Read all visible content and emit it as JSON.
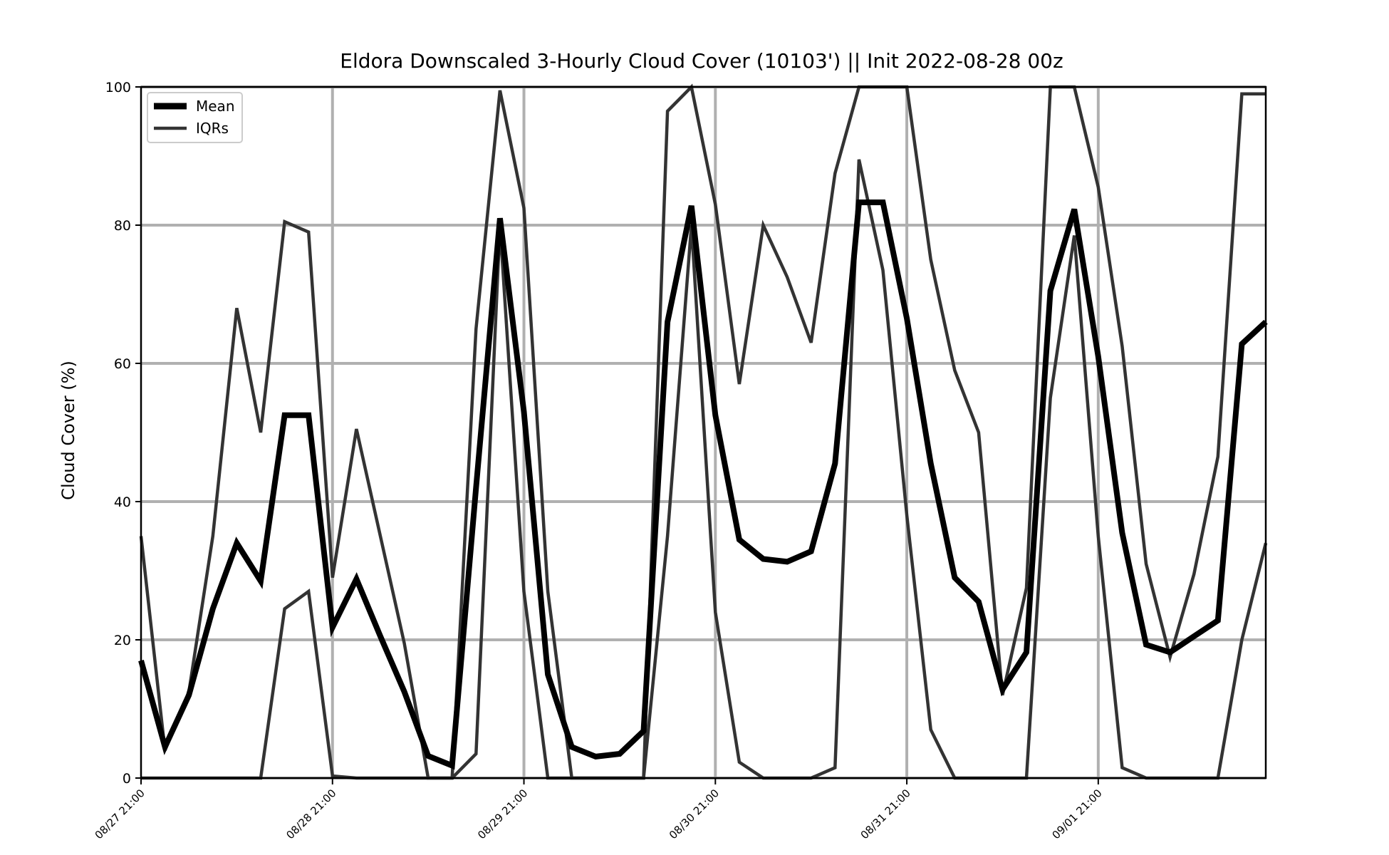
{
  "chart_data": {
    "type": "line",
    "title": "Eldora Downscaled 3-Hourly Cloud Cover (10103') || Init 2022-08-28 00z",
    "xlabel": "",
    "ylabel": "Cloud Cover (%)",
    "ylim": [
      0,
      100
    ],
    "yticks": [
      "0",
      "20",
      "40",
      "60",
      "80",
      "100"
    ],
    "xtick_labels": [
      "08/27 21:00",
      "08/28 21:00",
      "08/29 21:00",
      "08/30 21:00",
      "08/31 21:00",
      "09/01 21:00"
    ],
    "x": [
      "08/27 21:00",
      "08/28 00:00",
      "08/28 03:00",
      "08/28 06:00",
      "08/28 09:00",
      "08/28 12:00",
      "08/28 15:00",
      "08/28 18:00",
      "08/28 21:00",
      "08/29 00:00",
      "08/29 03:00",
      "08/29 06:00",
      "08/29 09:00",
      "08/29 12:00",
      "08/29 15:00",
      "08/29 18:00",
      "08/29 21:00",
      "08/30 00:00",
      "08/30 03:00",
      "08/30 06:00",
      "08/30 09:00",
      "08/30 12:00",
      "08/30 15:00",
      "08/30 18:00",
      "08/30 21:00",
      "08/31 00:00",
      "08/31 03:00",
      "08/31 06:00",
      "08/31 09:00",
      "08/31 12:00",
      "08/31 15:00",
      "08/31 18:00",
      "08/31 21:00",
      "09/01 00:00",
      "09/01 03:00",
      "09/01 06:00",
      "09/01 09:00",
      "09/01 12:00",
      "09/01 15:00",
      "09/01 18:00",
      "09/01 21:00",
      "09/02 00:00",
      "09/02 03:00",
      "09/02 06:00",
      "09/02 09:00",
      "09/02 12:00",
      "09/02 15:00",
      "09/02 18:00"
    ],
    "grid": true,
    "legend_position": "top-left",
    "series": [
      {
        "name": "Mean",
        "color": "#000000",
        "values": [
          17,
          4.5,
          12,
          24.5,
          34,
          28.5,
          52.5,
          52.5,
          21.8,
          28.8,
          20.5,
          12.5,
          3.2,
          1.8,
          42,
          81,
          53,
          15,
          4.5,
          3.1,
          3.5,
          6.8,
          66,
          82.8,
          52.5,
          34.5,
          31.7,
          31.3,
          32.8,
          45.5,
          83.3,
          83.3,
          66.5,
          45.5,
          29,
          25.5,
          12.8,
          18.2,
          70.5,
          82.3,
          61,
          35.5,
          19.3,
          18.2,
          20.5,
          22.8,
          62.8,
          66
        ]
      },
      {
        "name": "IQRs",
        "color": "#333333",
        "values": [
          35,
          4,
          12.5,
          35,
          68,
          50,
          80.5,
          79,
          29,
          50.5,
          35,
          19.5,
          0,
          0,
          65,
          99.5,
          82.5,
          27,
          0,
          0,
          0,
          0,
          96.5,
          100,
          83,
          57,
          80,
          72.5,
          63,
          87.5,
          100,
          100,
          100,
          75,
          59,
          50,
          12,
          27.5,
          100,
          100,
          85.5,
          62.5,
          31,
          17.5,
          29.5,
          46.5,
          99,
          99
        ]
      },
      {
        "name": "",
        "color": "#333333",
        "values": [
          0,
          0,
          0,
          0,
          0,
          0,
          24.5,
          27,
          0.3,
          0,
          0,
          0,
          0,
          0,
          3.5,
          80,
          27,
          0,
          0,
          0,
          0,
          0,
          35,
          80,
          24,
          2.3,
          0,
          0,
          0,
          1.5,
          89.5,
          73.5,
          38,
          7,
          0,
          0,
          0,
          0,
          55,
          78.5,
          35,
          1.5,
          0,
          0,
          0,
          0,
          20,
          34
        ]
      }
    ]
  }
}
